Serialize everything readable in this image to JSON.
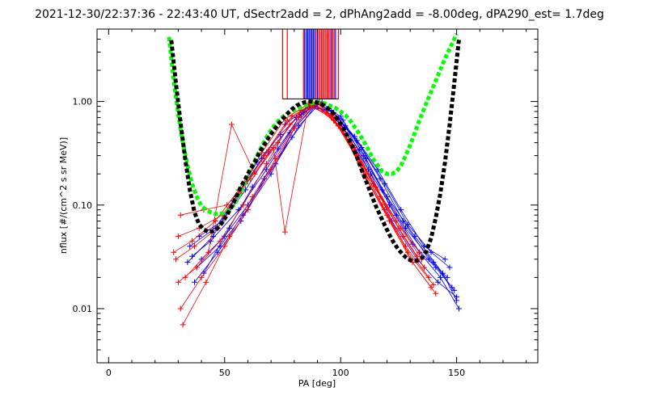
{
  "chart_data": {
    "type": "line",
    "title": "2021-12-30/22:37:36 - 22:43:40 UT, dSectr2add = 2, dPhAng2add = -8.00deg, dPA290_est=    1.7deg",
    "xlabel": "PA [deg]",
    "ylabel": "nflux [#/(cm^2 s sr MeV)]",
    "x_range": [
      -5,
      185
    ],
    "y_range": [
      0.003,
      5.0
    ],
    "y_scale": "log",
    "x_ticks": [
      0,
      50,
      100,
      150
    ],
    "x_tick_labels": [
      "0",
      "50",
      "100",
      "150"
    ],
    "y_ticks": [
      0.01,
      0.1,
      1.0
    ],
    "y_tick_labels": [
      "0.01",
      "0.10",
      "1.00"
    ],
    "grid": false,
    "colors": {
      "blue": "#0000ff",
      "red": "#ff0000",
      "black": "#000000",
      "green": "#00ff00"
    },
    "series": [
      {
        "color": "green",
        "style": "thick-dashed",
        "x": [
          26,
          28,
          30,
          32,
          34,
          36,
          38,
          40,
          42,
          44,
          46,
          48,
          50,
          52,
          54,
          56,
          58,
          60,
          62,
          64,
          66,
          68,
          70,
          72,
          74,
          76,
          78,
          80,
          82,
          84,
          86,
          88,
          90,
          92,
          94,
          96,
          98,
          100,
          102,
          104,
          106,
          108,
          110,
          112,
          114,
          116,
          118,
          120,
          122,
          124,
          126,
          128,
          130,
          132,
          134,
          136,
          138,
          140,
          142,
          144,
          146,
          148,
          150
        ],
        "y": [
          4.2,
          1.6,
          0.75,
          0.4,
          0.24,
          0.16,
          0.12,
          0.098,
          0.09,
          0.085,
          0.082,
          0.082,
          0.085,
          0.09,
          0.1,
          0.12,
          0.15,
          0.19,
          0.24,
          0.3,
          0.37,
          0.45,
          0.53,
          0.61,
          0.68,
          0.74,
          0.79,
          0.83,
          0.87,
          0.9,
          0.94,
          0.97,
          1.0,
          0.98,
          0.94,
          0.9,
          0.86,
          0.8,
          0.74,
          0.66,
          0.57,
          0.49,
          0.41,
          0.34,
          0.28,
          0.24,
          0.21,
          0.2,
          0.2,
          0.21,
          0.24,
          0.3,
          0.38,
          0.5,
          0.66,
          0.85,
          1.1,
          1.4,
          1.8,
          2.3,
          2.9,
          3.6,
          4.5
        ]
      },
      {
        "color": "black",
        "style": "thick-dashed",
        "x": [
          27,
          29,
          31,
          33,
          35,
          37,
          39,
          41,
          43,
          45,
          47,
          49,
          51,
          53,
          55,
          57,
          59,
          61,
          63,
          65,
          67,
          69,
          71,
          73,
          75,
          77,
          79,
          81,
          83,
          85,
          87,
          89,
          91,
          93,
          95,
          97,
          99,
          101,
          103,
          105,
          107,
          109,
          111,
          113,
          115,
          117,
          119,
          121,
          123,
          125,
          127,
          129,
          131,
          133,
          135,
          137,
          139,
          141,
          143,
          145,
          147,
          149,
          151
        ],
        "y": [
          3.9,
          1.5,
          0.62,
          0.28,
          0.14,
          0.085,
          0.065,
          0.058,
          0.055,
          0.056,
          0.06,
          0.068,
          0.08,
          0.097,
          0.12,
          0.15,
          0.18,
          0.22,
          0.26,
          0.32,
          0.38,
          0.45,
          0.52,
          0.6,
          0.68,
          0.76,
          0.84,
          0.91,
          0.96,
          0.99,
          1.0,
          0.99,
          0.96,
          0.91,
          0.84,
          0.76,
          0.66,
          0.56,
          0.46,
          0.37,
          0.29,
          0.22,
          0.17,
          0.13,
          0.1,
          0.08,
          0.064,
          0.052,
          0.043,
          0.037,
          0.033,
          0.03,
          0.029,
          0.029,
          0.031,
          0.036,
          0.048,
          0.075,
          0.13,
          0.26,
          0.6,
          1.5,
          4.0
        ]
      }
    ],
    "data_traces": [
      {
        "color": "blue",
        "x": [
          36,
          44,
          56,
          68,
          78,
          88,
          98,
          108,
          118,
          128,
          140,
          148
        ],
        "y": [
          0.032,
          0.045,
          0.09,
          0.22,
          0.5,
          0.95,
          0.7,
          0.34,
          0.14,
          0.06,
          0.028,
          0.016
        ]
      },
      {
        "color": "blue",
        "x": [
          38,
          48,
          58,
          70,
          80,
          90,
          100,
          110,
          120,
          132,
          144,
          150
        ],
        "y": [
          0.025,
          0.04,
          0.08,
          0.2,
          0.55,
          0.97,
          0.72,
          0.3,
          0.12,
          0.05,
          0.022,
          0.012
        ]
      },
      {
        "color": "blue",
        "x": [
          35,
          46,
          55,
          66,
          76,
          87,
          97,
          107,
          117,
          127,
          138,
          146
        ],
        "y": [
          0.04,
          0.06,
          0.12,
          0.28,
          0.6,
          0.92,
          0.78,
          0.42,
          0.18,
          0.07,
          0.03,
          0.02
        ]
      },
      {
        "color": "blue",
        "x": [
          40,
          50,
          60,
          72,
          82,
          91,
          101,
          111,
          121,
          131,
          141,
          149
        ],
        "y": [
          0.03,
          0.05,
          0.1,
          0.25,
          0.58,
          0.96,
          0.66,
          0.28,
          0.1,
          0.042,
          0.025,
          0.015
        ]
      },
      {
        "color": "blue",
        "x": [
          37,
          47,
          57,
          67,
          79,
          89,
          99,
          109,
          119,
          129,
          139,
          147
        ],
        "y": [
          0.018,
          0.035,
          0.07,
          0.18,
          0.45,
          0.9,
          0.68,
          0.36,
          0.16,
          0.065,
          0.035,
          0.025
        ]
      },
      {
        "color": "blue",
        "x": [
          39,
          49,
          59,
          69,
          81,
          90,
          100,
          112,
          124,
          134,
          143,
          151
        ],
        "y": [
          0.05,
          0.07,
          0.14,
          0.32,
          0.7,
          0.98,
          0.6,
          0.22,
          0.08,
          0.035,
          0.02,
          0.01
        ]
      },
      {
        "color": "blue",
        "x": [
          34,
          45,
          54,
          64,
          74,
          86,
          96,
          106,
          116,
          126,
          136,
          145
        ],
        "y": [
          0.028,
          0.05,
          0.11,
          0.26,
          0.48,
          0.88,
          0.82,
          0.46,
          0.22,
          0.09,
          0.04,
          0.03
        ]
      },
      {
        "color": "blue",
        "x": [
          41,
          52,
          62,
          73,
          83,
          92,
          102,
          113,
          122,
          133,
          142,
          150
        ],
        "y": [
          0.022,
          0.06,
          0.15,
          0.35,
          0.75,
          0.99,
          0.58,
          0.2,
          0.07,
          0.03,
          0.018,
          0.013
        ]
      },
      {
        "color": "red",
        "x": [
          30,
          38,
          48,
          58,
          68,
          78,
          88,
          98,
          108,
          118,
          128,
          138
        ],
        "y": [
          0.018,
          0.025,
          0.045,
          0.1,
          0.25,
          0.6,
          0.98,
          0.62,
          0.26,
          0.1,
          0.04,
          0.02
        ]
      },
      {
        "color": "red",
        "x": [
          31,
          40,
          50,
          60,
          70,
          80,
          89,
          99,
          109,
          119,
          129,
          140
        ],
        "y": [
          0.01,
          0.02,
          0.04,
          0.09,
          0.22,
          0.55,
          0.95,
          0.58,
          0.24,
          0.09,
          0.035,
          0.017
        ]
      },
      {
        "color": "red",
        "x": [
          29,
          37,
          47,
          57,
          67,
          77,
          87,
          97,
          107,
          117,
          127,
          136
        ],
        "y": [
          0.03,
          0.04,
          0.06,
          0.13,
          0.3,
          0.65,
          0.93,
          0.66,
          0.3,
          0.12,
          0.05,
          0.025
        ]
      },
      {
        "color": "red",
        "x": [
          32,
          42,
          52,
          62,
          72,
          82,
          90,
          100,
          110,
          120,
          130,
          139
        ],
        "y": [
          0.007,
          0.018,
          0.05,
          0.12,
          0.28,
          0.7,
          0.97,
          0.55,
          0.2,
          0.08,
          0.03,
          0.016
        ]
      },
      {
        "color": "red",
        "x": [
          30,
          39,
          49,
          59,
          69,
          79,
          88,
          98,
          106,
          116,
          126,
          135
        ],
        "y": [
          0.05,
          0.06,
          0.08,
          0.16,
          0.34,
          0.72,
          0.96,
          0.7,
          0.36,
          0.14,
          0.06,
          0.03
        ]
      },
      {
        "color": "red",
        "x": [
          33,
          43,
          53,
          63,
          73,
          83,
          91,
          101,
          111,
          121,
          131,
          141
        ],
        "y": [
          0.02,
          0.035,
          0.6,
          0.2,
          0.4,
          0.82,
          0.99,
          0.52,
          0.18,
          0.07,
          0.028,
          0.014
        ]
      },
      {
        "color": "red",
        "x": [
          31,
          41,
          51,
          61,
          71,
          76,
          86,
          96,
          104,
          114,
          124,
          134
        ],
        "y": [
          0.08,
          0.09,
          0.1,
          0.18,
          0.36,
          0.055,
          0.9,
          0.74,
          0.4,
          0.16,
          0.07,
          0.035
        ]
      },
      {
        "color": "red",
        "x": [
          28,
          36,
          46,
          56,
          66,
          76,
          86,
          96,
          105,
          115,
          125,
          133
        ],
        "y": [
          0.035,
          0.045,
          0.07,
          0.14,
          0.32,
          0.68,
          0.94,
          0.72,
          0.38,
          0.15,
          0.06,
          0.032
        ]
      }
    ],
    "sector_lines": [
      {
        "x": 75,
        "color": "red"
      },
      {
        "x": 77,
        "color": "red"
      },
      {
        "x": 84,
        "color": "red"
      },
      {
        "x": 84.5,
        "color": "blue"
      },
      {
        "x": 85.2,
        "color": "blue"
      },
      {
        "x": 85.8,
        "color": "blue"
      },
      {
        "x": 86.4,
        "color": "blue"
      },
      {
        "x": 87,
        "color": "blue"
      },
      {
        "x": 87.6,
        "color": "blue"
      },
      {
        "x": 88.2,
        "color": "blue"
      },
      {
        "x": 88.8,
        "color": "blue"
      },
      {
        "x": 89.4,
        "color": "red"
      },
      {
        "x": 90,
        "color": "blue"
      },
      {
        "x": 90.6,
        "color": "red"
      },
      {
        "x": 91.2,
        "color": "red"
      },
      {
        "x": 91.8,
        "color": "red"
      },
      {
        "x": 92.4,
        "color": "red"
      },
      {
        "x": 93,
        "color": "red"
      },
      {
        "x": 93.6,
        "color": "red"
      },
      {
        "x": 94.2,
        "color": "red"
      },
      {
        "x": 94.8,
        "color": "red"
      },
      {
        "x": 95.4,
        "color": "red"
      },
      {
        "x": 96,
        "color": "blue"
      },
      {
        "x": 96.6,
        "color": "red"
      },
      {
        "x": 97.2,
        "color": "red"
      },
      {
        "x": 97.8,
        "color": "blue"
      },
      {
        "x": 99,
        "color": "red"
      }
    ],
    "sector_line_y": [
      1.05,
      5.0
    ]
  }
}
